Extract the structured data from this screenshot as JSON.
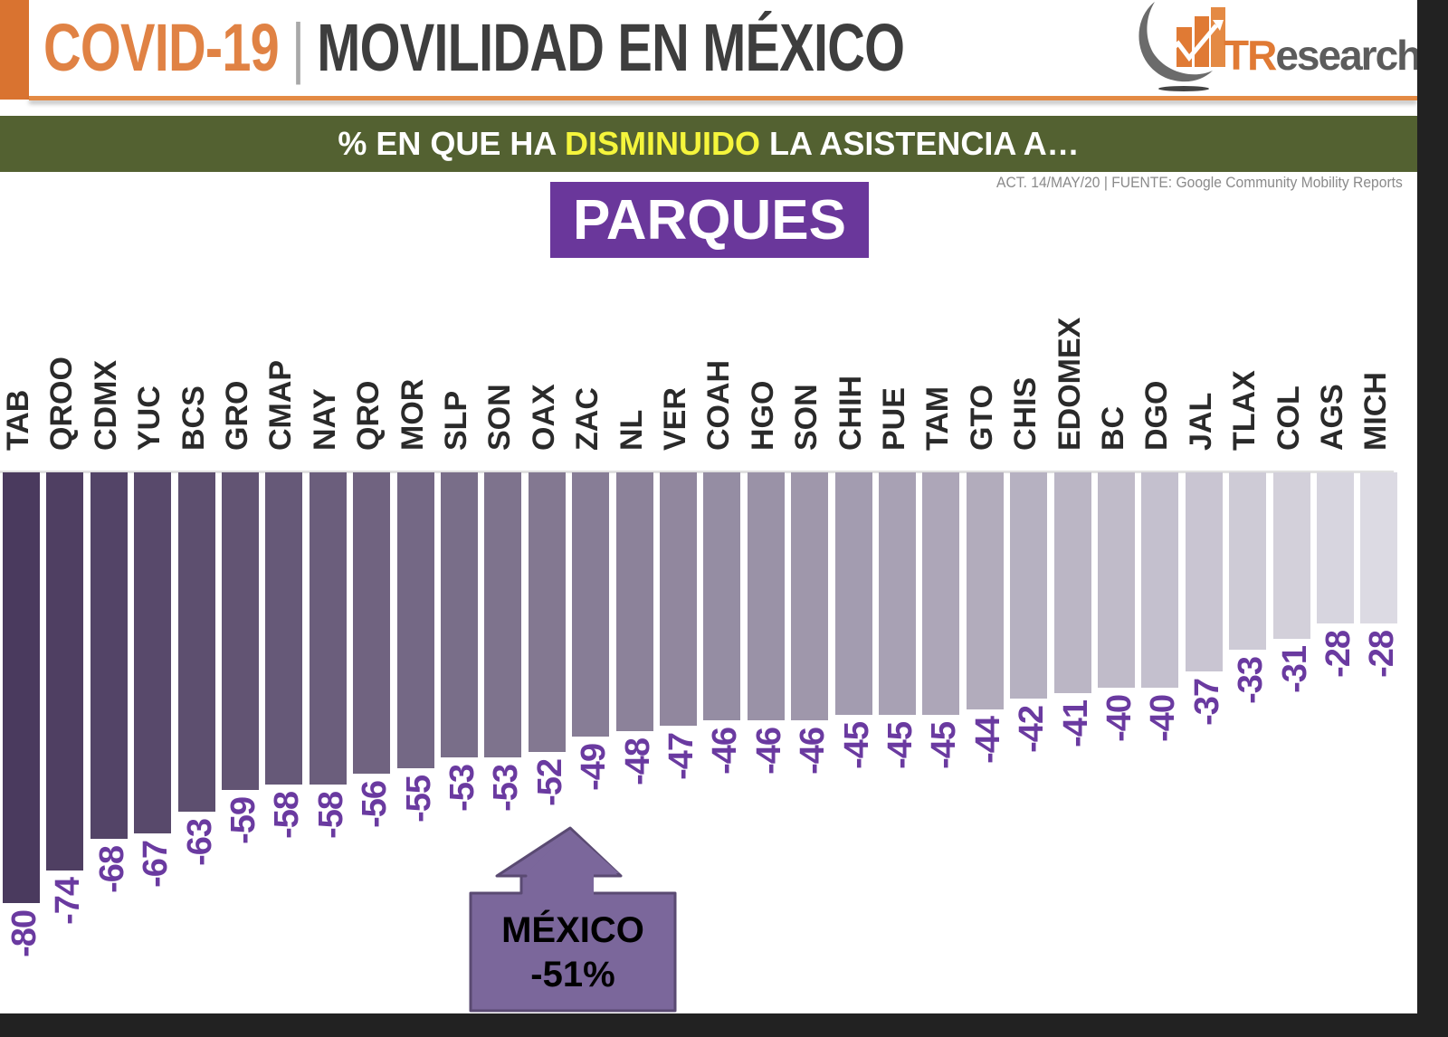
{
  "header": {
    "title_part1": "COVID-19",
    "title_separator": "|",
    "title_part2": "MOVILIDAD EN MÉXICO",
    "logo": {
      "icon": "bar-chart-growth-icon",
      "text_t": "T",
      "text_r": "R",
      "text_rest": "esearch"
    }
  },
  "subtitle": {
    "prefix": "% EN QUE HA ",
    "highlight": "DISMINUIDO",
    "suffix": " LA ASISTENCIA A…"
  },
  "source_note": "ACT. 14/MAY/20 | FUENTE: Google Community Mobility Reports",
  "category": "PARQUES",
  "callout": {
    "label": "MÉXICO",
    "value": "-51%",
    "icon": "up-arrow-icon"
  },
  "colors": {
    "title_orange": "#e08244",
    "title_dark": "#3e3e3e",
    "band_green": "#536131",
    "highlight_yellow": "#f5f53c",
    "badge_purple": "#6a379b",
    "value_purple": "#6a3aa0",
    "bar_darkest": "#4a3a5e",
    "bar_lightest": "#dcdae3"
  },
  "chart_data": {
    "type": "bar",
    "title": "% EN QUE HA DISMINUIDO LA ASISTENCIA A… PARQUES",
    "xlabel": "",
    "ylabel": "",
    "categories": [
      "TAB",
      "QROO",
      "CDMX",
      "YUC",
      "BCS",
      "GRO",
      "CMAP",
      "NAY",
      "QRO",
      "MOR",
      "SLP",
      "SON",
      "OAX",
      "ZAC",
      "NL",
      "VER",
      "COAH",
      "HGO",
      "SON",
      "CHIH",
      "PUE",
      "TAM",
      "GTO",
      "CHIS",
      "EDOMEX",
      "BC",
      "DGO",
      "JAL",
      "TLAX",
      "COL",
      "AGS",
      "MICH"
    ],
    "values": [
      -80,
      -74,
      -68,
      -67,
      -63,
      -59,
      -58,
      -58,
      -56,
      -55,
      -53,
      -53,
      -52,
      -49,
      -48,
      -47,
      -46,
      -46,
      -46,
      -45,
      -45,
      -45,
      -44,
      -42,
      -41,
      -40,
      -40,
      -37,
      -33,
      -31,
      -28,
      -28
    ],
    "value_labels": [
      "-80",
      "-74",
      "-68",
      "-67",
      "-63",
      "-59",
      "-58",
      "-58",
      "-56",
      "-55",
      "-53",
      "-53",
      "-52",
      "-49",
      "-48",
      "-47",
      "-46",
      "-46",
      "-46",
      "-45",
      "-45",
      "-45",
      "-44",
      "-42",
      "-41",
      "-40",
      "-40",
      "-37",
      "-33",
      "-31",
      "-28",
      "-28"
    ],
    "ylim": [
      -80,
      0
    ],
    "grid": false,
    "legend": null,
    "annotations": [
      {
        "text": "MÉXICO -51%",
        "position": "between OAX and ZAC"
      }
    ],
    "orientation": "bars hang downward from baseline; category labels rotated 90° above bars; value labels rotated below bars"
  }
}
